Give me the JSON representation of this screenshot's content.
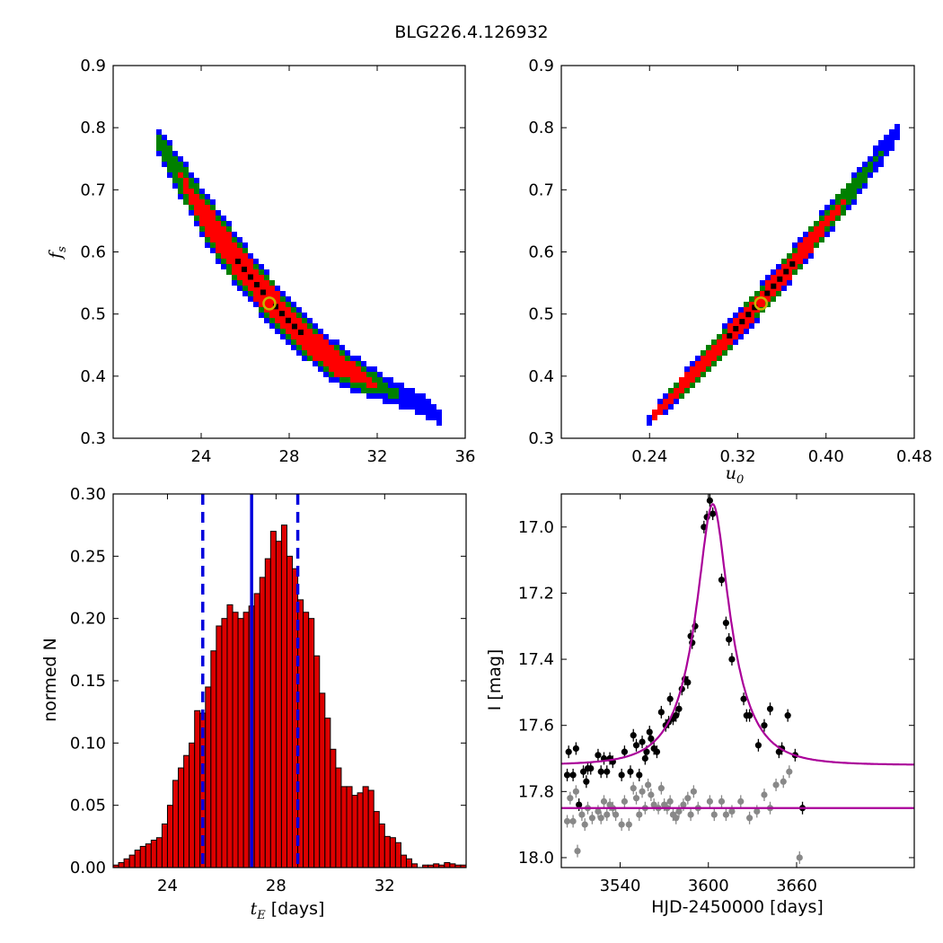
{
  "figure": {
    "title": "BLG226.4.126932"
  },
  "colors": {
    "level1": "#000000",
    "level2": "#ff0000",
    "level3": "#008000",
    "level4": "#0000ff",
    "best_fit_marker": "#c8b400",
    "hist_bar": "#dd0000",
    "hist_line": "#0000dd",
    "model_curve": "#aa0099",
    "data_ogle": "#000000",
    "data_other": "#888888"
  },
  "chart_data": [
    {
      "id": "tE_fs",
      "type": "heatmap",
      "ylabel_main": "f",
      "ylabel_sub": "s",
      "xlim": [
        20,
        36
      ],
      "ylim": [
        0.3,
        0.9
      ],
      "xticks": [
        "24",
        "28",
        "32",
        "36"
      ],
      "yticks": [
        "0.3",
        "0.4",
        "0.5",
        "0.6",
        "0.7",
        "0.8",
        "0.9"
      ],
      "best_fit": {
        "x": 27.1,
        "y": 0.517
      },
      "trend": {
        "x": [
          22.0,
          23.0,
          24.0,
          25.0,
          26.0,
          27.0,
          28.0,
          29.0,
          30.0,
          31.0,
          32.0,
          33.0,
          34.0,
          34.9
        ],
        "y": [
          0.78,
          0.725,
          0.665,
          0.615,
          0.57,
          0.527,
          0.488,
          0.455,
          0.425,
          0.403,
          0.386,
          0.37,
          0.355,
          0.335
        ]
      },
      "confidence_halfwidth": {
        "level2": [
          0.0,
          0.0,
          0.018,
          0.022,
          0.022,
          0.02,
          0.02,
          0.018,
          0.016,
          0.01,
          0.0,
          0.0,
          0.0,
          0.0
        ],
        "level3": [
          0.01,
          0.02,
          0.028,
          0.032,
          0.03,
          0.028,
          0.027,
          0.025,
          0.022,
          0.018,
          0.012,
          0.0,
          0.0,
          0.0
        ],
        "level4": [
          0.02,
          0.028,
          0.036,
          0.04,
          0.038,
          0.036,
          0.034,
          0.032,
          0.03,
          0.026,
          0.02,
          0.015,
          0.012,
          0.008
        ]
      }
    },
    {
      "id": "u0_fs",
      "type": "heatmap",
      "xlabel_main": "u",
      "xlabel_sub": "0",
      "xlim": [
        0.16,
        0.48
      ],
      "ylim": [
        0.3,
        0.9
      ],
      "xticks": [
        "0.24",
        "0.32",
        "0.40",
        "0.48"
      ],
      "yticks": [
        "0.3",
        "0.4",
        "0.5",
        "0.6",
        "0.7",
        "0.8",
        "0.9"
      ],
      "best_fit": {
        "x": 0.341,
        "y": 0.517
      },
      "trend": {
        "x": [
          0.24,
          0.27,
          0.3,
          0.33,
          0.36,
          0.39,
          0.42,
          0.45,
          0.463
        ],
        "y": [
          0.33,
          0.385,
          0.44,
          0.5,
          0.56,
          0.625,
          0.69,
          0.76,
          0.79
        ]
      },
      "confidence_halfwidth": {
        "level2": [
          0.0,
          0.008,
          0.01,
          0.012,
          0.012,
          0.012,
          0.0,
          0.0,
          0.0
        ],
        "level3": [
          0.0,
          0.012,
          0.015,
          0.017,
          0.017,
          0.016,
          0.014,
          0.0,
          0.0
        ],
        "level4": [
          0.006,
          0.015,
          0.02,
          0.022,
          0.022,
          0.021,
          0.019,
          0.016,
          0.01
        ]
      }
    },
    {
      "id": "tE_hist",
      "type": "bar",
      "xlabel_main": "t",
      "xlabel_sub": "E",
      "xlabel_rest": " [days]",
      "ylabel": "normed N",
      "xlim": [
        22,
        35
      ],
      "ylim": [
        0,
        0.3
      ],
      "xticks": [
        "24",
        "28",
        "32"
      ],
      "yticks": [
        "0.00",
        "0.05",
        "0.10",
        "0.15",
        "0.20",
        "0.25",
        "0.30"
      ],
      "bin_start": 22.0,
      "bin_width": 0.2,
      "values": [
        0.002,
        0.004,
        0.007,
        0.01,
        0.014,
        0.017,
        0.019,
        0.022,
        0.024,
        0.035,
        0.05,
        0.07,
        0.08,
        0.09,
        0.1,
        0.126,
        0.124,
        0.145,
        0.174,
        0.194,
        0.2,
        0.211,
        0.205,
        0.2,
        0.205,
        0.21,
        0.22,
        0.233,
        0.248,
        0.27,
        0.262,
        0.275,
        0.25,
        0.24,
        0.215,
        0.205,
        0.2,
        0.17,
        0.14,
        0.12,
        0.095,
        0.08,
        0.065,
        0.065,
        0.058,
        0.06,
        0.065,
        0.062,
        0.045,
        0.035,
        0.025,
        0.024,
        0.02,
        0.01,
        0.007,
        0.003,
        0.0,
        0.002,
        0.002,
        0.003,
        0.002,
        0.004,
        0.003,
        0.002,
        0.002
      ],
      "median": 27.1,
      "ci_low": 25.3,
      "ci_high": 28.8
    },
    {
      "id": "light_curve",
      "type": "scatter",
      "xlabel": "HJD-2450000 [days]",
      "ylabel": "I [mag]",
      "xlim": [
        3500,
        3740
      ],
      "ylim": [
        18.03,
        16.9
      ],
      "xticks": [
        "3540",
        "3600",
        "3660"
      ],
      "yticks": [
        "17.0",
        "17.2",
        "17.4",
        "17.6",
        "17.8",
        "18.0"
      ],
      "model": {
        "t0": 3603,
        "u0": 0.34,
        "tE": 27.1,
        "fs": 0.517,
        "baseline": 17.72
      },
      "secondary_baseline": 17.85,
      "series": [
        {
          "points": [
            [
              3504,
              17.75
            ],
            [
              3505,
              17.68
            ],
            [
              3508,
              17.75
            ],
            [
              3510,
              17.67
            ],
            [
              3512,
              17.84
            ],
            [
              3515,
              17.74
            ],
            [
              3517,
              17.77
            ],
            [
              3518,
              17.73
            ],
            [
              3520,
              17.73
            ],
            [
              3525,
              17.69
            ],
            [
              3527,
              17.74
            ],
            [
              3529,
              17.7
            ],
            [
              3531,
              17.74
            ],
            [
              3533,
              17.7
            ],
            [
              3535,
              17.71
            ],
            [
              3541,
              17.75
            ],
            [
              3543,
              17.68
            ],
            [
              3547,
              17.74
            ],
            [
              3549,
              17.63
            ],
            [
              3551,
              17.66
            ],
            [
              3553,
              17.75
            ],
            [
              3555,
              17.65
            ],
            [
              3557,
              17.7
            ],
            [
              3558,
              17.68
            ],
            [
              3560,
              17.62
            ],
            [
              3561,
              17.64
            ],
            [
              3563,
              17.67
            ],
            [
              3565,
              17.68
            ],
            [
              3568,
              17.56
            ],
            [
              3571,
              17.6
            ],
            [
              3573,
              17.59
            ],
            [
              3574,
              17.52
            ],
            [
              3576,
              17.58
            ],
            [
              3578,
              17.57
            ],
            [
              3580,
              17.55
            ],
            [
              3582,
              17.49
            ],
            [
              3584,
              17.46
            ],
            [
              3586,
              17.47
            ],
            [
              3588,
              17.33
            ],
            [
              3589,
              17.35
            ],
            [
              3591,
              17.3
            ],
            [
              3597,
              17.0
            ],
            [
              3599,
              16.97
            ],
            [
              3601,
              16.92
            ],
            [
              3603,
              16.96
            ],
            [
              3609,
              17.16
            ],
            [
              3612,
              17.29
            ],
            [
              3614,
              17.34
            ],
            [
              3616,
              17.4
            ],
            [
              3624,
              17.52
            ],
            [
              3626,
              17.57
            ],
            [
              3628,
              17.57
            ],
            [
              3634,
              17.66
            ],
            [
              3638,
              17.6
            ],
            [
              3642,
              17.55
            ],
            [
              3648,
              17.68
            ],
            [
              3650,
              17.67
            ],
            [
              3654,
              17.57
            ],
            [
              3659,
              17.69
            ],
            [
              3664,
              17.85
            ]
          ]
        },
        {
          "points": [
            [
              3504,
              17.89
            ],
            [
              3506,
              17.82
            ],
            [
              3508,
              17.89
            ],
            [
              3510,
              17.8
            ],
            [
              3511,
              17.98
            ],
            [
              3514,
              17.87
            ],
            [
              3516,
              17.9
            ],
            [
              3518,
              17.85
            ],
            [
              3521,
              17.88
            ],
            [
              3525,
              17.86
            ],
            [
              3527,
              17.88
            ],
            [
              3529,
              17.83
            ],
            [
              3531,
              17.87
            ],
            [
              3533,
              17.84
            ],
            [
              3535,
              17.85
            ],
            [
              3537,
              17.87
            ],
            [
              3541,
              17.9
            ],
            [
              3543,
              17.83
            ],
            [
              3546,
              17.9
            ],
            [
              3549,
              17.79
            ],
            [
              3551,
              17.82
            ],
            [
              3553,
              17.87
            ],
            [
              3555,
              17.8
            ],
            [
              3557,
              17.85
            ],
            [
              3559,
              17.78
            ],
            [
              3561,
              17.81
            ],
            [
              3563,
              17.84
            ],
            [
              3566,
              17.85
            ],
            [
              3568,
              17.79
            ],
            [
              3570,
              17.84
            ],
            [
              3572,
              17.85
            ],
            [
              3574,
              17.83
            ],
            [
              3576,
              17.87
            ],
            [
              3578,
              17.88
            ],
            [
              3580,
              17.86
            ],
            [
              3583,
              17.84
            ],
            [
              3586,
              17.82
            ],
            [
              3588,
              17.87
            ],
            [
              3590,
              17.8
            ],
            [
              3593,
              17.85
            ],
            [
              3601,
              17.83
            ],
            [
              3604,
              17.87
            ],
            [
              3609,
              17.83
            ],
            [
              3612,
              17.87
            ],
            [
              3616,
              17.86
            ],
            [
              3622,
              17.83
            ],
            [
              3628,
              17.88
            ],
            [
              3633,
              17.86
            ],
            [
              3638,
              17.81
            ],
            [
              3642,
              17.85
            ],
            [
              3646,
              17.78
            ],
            [
              3651,
              17.77
            ],
            [
              3655,
              17.74
            ],
            [
              3662,
              18.0
            ]
          ]
        }
      ]
    }
  ]
}
